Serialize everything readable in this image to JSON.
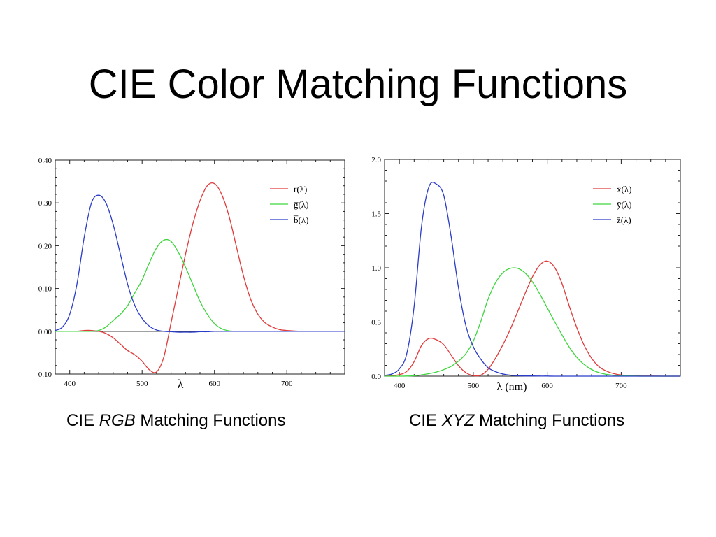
{
  "slide": {
    "title": "CIE Color Matching Functions"
  },
  "captions": [
    {
      "prefix": "CIE ",
      "italic": "RGB",
      "suffix": " Matching Functions"
    },
    {
      "prefix": "CIE ",
      "italic": "XYZ",
      "suffix": " Matching Functions"
    }
  ],
  "chart_data": [
    {
      "type": "line",
      "xlabel": "λ",
      "ylabel": "",
      "xlim": [
        380,
        780
      ],
      "ylim": [
        -0.1,
        0.4
      ],
      "xticks": [
        400,
        500,
        600,
        700
      ],
      "yticks": [
        -0.1,
        0.0,
        0.1,
        0.2,
        0.3,
        0.4
      ],
      "ytick_labels": [
        "-0.10",
        "0.00",
        "0.10",
        "0.20",
        "0.30",
        "0.40"
      ],
      "zero_line": true,
      "legend_position": "top-right",
      "grid": false,
      "x": [
        380,
        390,
        400,
        410,
        420,
        430,
        440,
        450,
        460,
        470,
        480,
        490,
        500,
        510,
        520,
        530,
        540,
        550,
        560,
        570,
        580,
        590,
        600,
        610,
        620,
        630,
        640,
        650,
        660,
        670,
        680,
        690,
        700,
        720,
        740,
        760,
        780
      ],
      "series": [
        {
          "name": "r̄(λ)",
          "color": "#e03a3a",
          "values": [
            0.0,
            0.0,
            0.0,
            0.0,
            0.002,
            0.002,
            0.0,
            -0.005,
            -0.015,
            -0.03,
            -0.045,
            -0.055,
            -0.07,
            -0.09,
            -0.095,
            -0.06,
            0.02,
            0.1,
            0.18,
            0.25,
            0.305,
            0.34,
            0.345,
            0.32,
            0.27,
            0.2,
            0.13,
            0.075,
            0.04,
            0.02,
            0.01,
            0.004,
            0.002,
            0.0,
            0.0,
            0.0,
            0.0
          ]
        },
        {
          "name": "g̅(λ)",
          "color": "#3dd63d",
          "values": [
            0.0,
            0.0,
            0.0,
            0.0,
            0.0,
            0.0,
            0.002,
            0.01,
            0.025,
            0.04,
            0.06,
            0.09,
            0.12,
            0.16,
            0.195,
            0.213,
            0.21,
            0.185,
            0.15,
            0.11,
            0.07,
            0.04,
            0.018,
            0.006,
            0.001,
            0.0,
            0.0,
            0.0,
            0.0,
            0.0,
            0.0,
            0.0,
            0.0,
            0.0,
            0.0,
            0.0,
            0.0
          ]
        },
        {
          "name": "b̅(λ)",
          "color": "#2b3cc9",
          "values": [
            0.002,
            0.01,
            0.04,
            0.11,
            0.22,
            0.3,
            0.318,
            0.3,
            0.25,
            0.18,
            0.11,
            0.06,
            0.03,
            0.012,
            0.003,
            0.0,
            -0.001,
            -0.002,
            -0.002,
            -0.002,
            -0.001,
            -0.001,
            0.0,
            0.0,
            0.0,
            0.0,
            0.0,
            0.0,
            0.0,
            0.0,
            0.0,
            0.0,
            0.0,
            0.0,
            0.0,
            0.0,
            0.0
          ]
        }
      ]
    },
    {
      "type": "line",
      "xlabel": "λ (nm)",
      "ylabel": "",
      "xlim": [
        380,
        780
      ],
      "ylim": [
        0,
        2.0
      ],
      "xticks": [
        400,
        500,
        600,
        700
      ],
      "yticks": [
        0,
        0.5,
        1.0,
        1.5,
        2.0
      ],
      "ytick_labels": [
        "0.0",
        "0.5",
        "1.0",
        "1.5",
        "2.0"
      ],
      "zero_line": false,
      "legend_position": "top-right",
      "grid": false,
      "x": [
        380,
        390,
        400,
        410,
        420,
        430,
        440,
        450,
        460,
        470,
        480,
        490,
        500,
        510,
        520,
        530,
        540,
        550,
        560,
        570,
        580,
        590,
        600,
        610,
        620,
        630,
        640,
        650,
        660,
        670,
        680,
        690,
        700,
        720,
        740,
        760,
        780
      ],
      "series": [
        {
          "name": "x̄(λ)",
          "color": "#e03a3a",
          "values": [
            0.001,
            0.004,
            0.014,
            0.043,
            0.134,
            0.284,
            0.348,
            0.336,
            0.291,
            0.195,
            0.096,
            0.032,
            0.005,
            0.009,
            0.063,
            0.166,
            0.29,
            0.433,
            0.595,
            0.762,
            0.916,
            1.026,
            1.062,
            1.003,
            0.854,
            0.642,
            0.448,
            0.284,
            0.165,
            0.087,
            0.047,
            0.023,
            0.011,
            0.003,
            0.001,
            0.0,
            0.0
          ]
        },
        {
          "name": "ȳ(λ)",
          "color": "#3dd63d",
          "values": [
            0.0,
            0.0,
            0.0,
            0.001,
            0.004,
            0.012,
            0.023,
            0.038,
            0.06,
            0.091,
            0.139,
            0.208,
            0.323,
            0.503,
            0.71,
            0.862,
            0.954,
            0.995,
            0.995,
            0.952,
            0.87,
            0.757,
            0.631,
            0.503,
            0.381,
            0.265,
            0.175,
            0.107,
            0.061,
            0.032,
            0.017,
            0.008,
            0.004,
            0.001,
            0.0,
            0.0,
            0.0
          ]
        },
        {
          "name": "z̄(λ)",
          "color": "#2b3cc9",
          "values": [
            0.007,
            0.02,
            0.068,
            0.207,
            0.646,
            1.386,
            1.747,
            1.772,
            1.669,
            1.288,
            0.813,
            0.465,
            0.272,
            0.158,
            0.078,
            0.042,
            0.02,
            0.009,
            0.004,
            0.002,
            0.002,
            0.001,
            0.001,
            0.0,
            0.0,
            0.0,
            0.0,
            0.0,
            0.0,
            0.0,
            0.0,
            0.0,
            0.0,
            0.0,
            0.0,
            0.0,
            0.0
          ]
        }
      ]
    }
  ]
}
